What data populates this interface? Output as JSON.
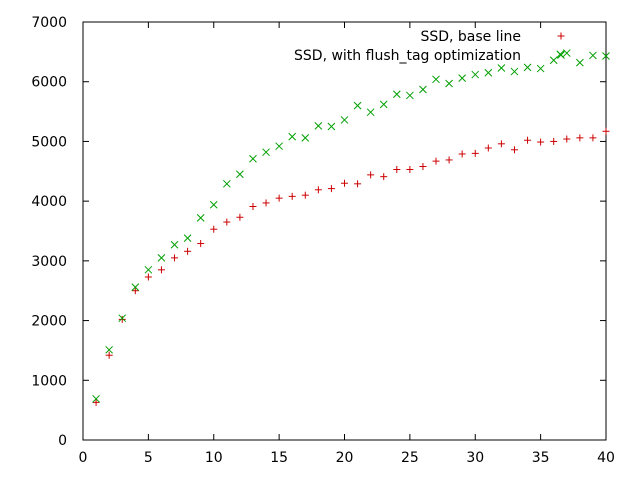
{
  "chart_data": {
    "type": "scatter",
    "title": "",
    "xlabel": "",
    "ylabel": "",
    "xlim": [
      0,
      40
    ],
    "ylim": [
      0,
      7000
    ],
    "grid": false,
    "legend_position": "top-right",
    "x_ticks": [
      "0",
      "5",
      "10",
      "15",
      "20",
      "25",
      "30",
      "35",
      "40"
    ],
    "y_ticks": [
      "0",
      "1000",
      "2000",
      "3000",
      "4000",
      "5000",
      "6000",
      "7000"
    ],
    "series": [
      {
        "name": "SSD, base line",
        "marker": "plus",
        "color": "#cc0000",
        "x": [
          1,
          2,
          3,
          4,
          5,
          6,
          7,
          8,
          9,
          10,
          11,
          12,
          13,
          14,
          15,
          16,
          17,
          18,
          19,
          20,
          21,
          22,
          23,
          24,
          25,
          26,
          27,
          28,
          29,
          30,
          31,
          32,
          33,
          34,
          35,
          36,
          37,
          38,
          39,
          40
        ],
        "values": [
          630,
          1420,
          2020,
          2500,
          2730,
          2850,
          3050,
          3160,
          3290,
          3530,
          3650,
          3730,
          3910,
          3970,
          4050,
          4080,
          4100,
          4190,
          4210,
          4300,
          4290,
          4440,
          4410,
          4530,
          4530,
          4580,
          4670,
          4690,
          4790,
          4800,
          4890,
          4960,
          4860,
          5020,
          4990,
          5000,
          5040,
          5060,
          5060,
          5170
        ]
      },
      {
        "name": "SSD,  with flush_tag optimization",
        "marker": "cross",
        "color": "#00a000",
        "x": [
          1,
          2,
          3,
          4,
          5,
          6,
          7,
          8,
          9,
          10,
          11,
          12,
          13,
          14,
          15,
          16,
          17,
          18,
          19,
          20,
          21,
          22,
          23,
          24,
          25,
          26,
          27,
          28,
          29,
          30,
          31,
          32,
          33,
          34,
          35,
          36,
          36.5,
          37,
          38,
          39,
          40
        ],
        "values": [
          690,
          1510,
          2040,
          2560,
          2850,
          3050,
          3270,
          3380,
          3720,
          3940,
          4290,
          4450,
          4710,
          4820,
          4920,
          5080,
          5060,
          5260,
          5250,
          5360,
          5600,
          5490,
          5620,
          5790,
          5770,
          5870,
          6040,
          5970,
          6060,
          6120,
          6150,
          6230,
          6170,
          6240,
          6220,
          6360,
          6460,
          6480,
          6320,
          6440,
          6430
        ]
      }
    ]
  }
}
